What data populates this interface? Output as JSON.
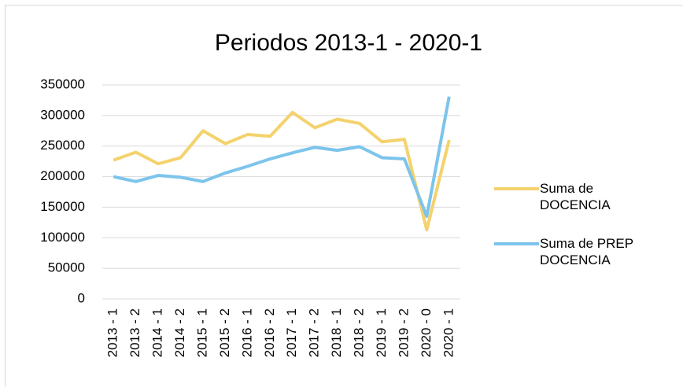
{
  "chart_data": {
    "type": "line",
    "title": "Periodos 2013-1 - 2020-1",
    "categories": [
      "2013 - 1",
      "2013 - 2",
      "2014 - 1",
      "2014 - 2",
      "2015 - 1",
      "2015 - 2",
      "2016 - 1",
      "2016 - 2",
      "2017 - 1",
      "2017 - 2",
      "2018 - 1",
      "2018 - 2",
      "2019 - 1",
      "2019 - 2",
      "2020 - 0",
      "2020 - 1"
    ],
    "series": [
      {
        "name": "Suma de DOCENCIA",
        "color": "#f4d26c",
        "values": [
          227000,
          240000,
          221000,
          231000,
          275000,
          254000,
          269000,
          266000,
          305000,
          280000,
          294000,
          287000,
          257000,
          261000,
          113000,
          260000
        ]
      },
      {
        "name": "Suma de PREP DOCENCIA",
        "color": "#7cc4ec",
        "values": [
          200000,
          192000,
          202000,
          199000,
          192000,
          206000,
          217000,
          229000,
          239000,
          248000,
          243000,
          249000,
          231000,
          229000,
          135000,
          331000
        ]
      }
    ],
    "ylim": [
      0,
      350000
    ],
    "yticks": [
      0,
      50000,
      100000,
      150000,
      200000,
      250000,
      300000,
      350000
    ],
    "grid": true,
    "legend": "right"
  }
}
